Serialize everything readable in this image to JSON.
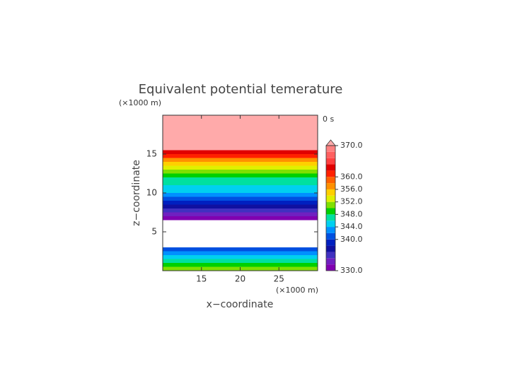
{
  "chart_data": {
    "type": "banded-contour",
    "title": "Equivalent potential temerature",
    "x_label": "x−coordinate",
    "y_label": "z−coordinate",
    "x_unit": "(×1000 m)",
    "y_unit": "(×1000 m)",
    "time_label": "0 s",
    "xlim": [
      10,
      30
    ],
    "xticks": [
      15,
      20,
      25
    ],
    "ylim": [
      0,
      20
    ],
    "yticks": [
      5,
      10,
      15
    ],
    "z_step": 0.5,
    "z": [
      0,
      0.5,
      1,
      1.5,
      2,
      2.5,
      3,
      3.5,
      4,
      4.5,
      5,
      5.5,
      6,
      6.5,
      7,
      7.5,
      8,
      8.5,
      9,
      9.5,
      10,
      10.5,
      11,
      11.5,
      12,
      12.5,
      13,
      13.5,
      14,
      14.5,
      15,
      15.5,
      16,
      16.5,
      17,
      17.5,
      18,
      18.5,
      19,
      19.5
    ],
    "values": [
      351,
      349,
      347,
      345,
      342,
      340,
      null,
      null,
      null,
      null,
      null,
      null,
      null,
      331,
      333,
      335,
      337,
      339,
      341,
      343,
      344,
      345,
      346,
      347,
      349,
      351,
      353,
      355,
      357,
      360,
      362,
      372,
      372,
      372,
      372,
      372,
      372,
      372,
      372,
      372
    ],
    "colorbar": {
      "levels": [
        330,
        332,
        334,
        336,
        338,
        340,
        342,
        344,
        346,
        348,
        350,
        352,
        354,
        356,
        358,
        360,
        362,
        364,
        366,
        368,
        370
      ],
      "colors": [
        "#8000b0",
        "#7020c0",
        "#4030c0",
        "#1010a0",
        "#0020c0",
        "#0050e0",
        "#0090ff",
        "#00d0f0",
        "#00e0a0",
        "#00d000",
        "#80e000",
        "#e0f000",
        "#ffd000",
        "#ff9000",
        "#ff6000",
        "#ff2000",
        "#e00000",
        "#ff4040",
        "#ff6060",
        "#ff8080"
      ],
      "over_color": "#ffaaaa",
      "ticks": [
        {
          "value": 330,
          "label": "330.0"
        },
        {
          "value": 340,
          "label": "340.0"
        },
        {
          "value": 344,
          "label": "344.0"
        },
        {
          "value": 348,
          "label": "348.0"
        },
        {
          "value": 352,
          "label": "352.0"
        },
        {
          "value": 356,
          "label": "356.0"
        },
        {
          "value": 360,
          "label": "360.0"
        },
        {
          "value": 370,
          "label": "370.0"
        }
      ]
    }
  }
}
